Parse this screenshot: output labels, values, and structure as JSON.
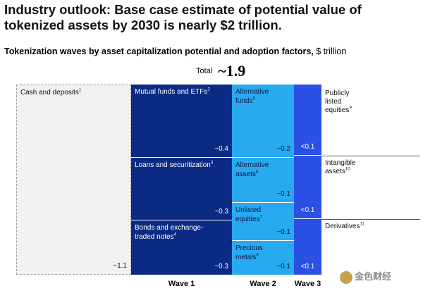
{
  "title": "Industry outlook: Base case estimate of potential value of tokenized assets by 2030 is nearly $2 trillion.",
  "subtitle_bold": "Tokenization waves by asset capitalization potential and adoption factors,",
  "subtitle_unit": "$ trillion",
  "total_label": "Total",
  "total_value": "~1.9",
  "chart_data": {
    "type": "treemap",
    "unit": "$ trillion",
    "total": 1.9,
    "groups": [
      {
        "name": "",
        "items": [
          {
            "label": "Cash and deposits",
            "note": "1",
            "value_text": "~1.1",
            "value": 1.1
          }
        ]
      },
      {
        "name": "Wave 1",
        "items": [
          {
            "label": "Mutual funds and ETFs",
            "note": "2",
            "value_text": "~0.4",
            "value": 0.4
          },
          {
            "label": "Loans and securitization",
            "note": "3",
            "value_text": "~0.3",
            "value": 0.3
          },
          {
            "label": "Bonds and exchange-traded notes",
            "note": "4",
            "value_text": "~0.3",
            "value": 0.3
          }
        ]
      },
      {
        "name": "Wave 2",
        "items": [
          {
            "label": "Alternative funds",
            "note": "5",
            "value_text": "~0.2",
            "value": 0.2
          },
          {
            "label": "Alternative assets",
            "note": "6",
            "value_text": "~0.1",
            "value": 0.1
          },
          {
            "label": "Unlisted equities",
            "note": "7",
            "value_text": "~0.1",
            "value": 0.1
          },
          {
            "label": "Precious metals",
            "note": "8",
            "value_text": "~0.1",
            "value": 0.1
          }
        ]
      },
      {
        "name": "Wave 3",
        "items": [
          {
            "label": "Publicly listed equities",
            "note": "9",
            "value_text": "<0.1",
            "value": 0.1
          },
          {
            "label": "Intangible assets",
            "note": "10",
            "value_text": "<0.1",
            "value": 0.1
          },
          {
            "label": "Derivatives",
            "note": "11",
            "value_text": "<0.1",
            "value": 0.1
          }
        ]
      }
    ]
  },
  "watermark": "金色财经",
  "colors": {
    "wave1": "#0b2a83",
    "wave2": "#27aaf0",
    "wave3": "#2a51e3",
    "cash": "#f1f1f1"
  }
}
